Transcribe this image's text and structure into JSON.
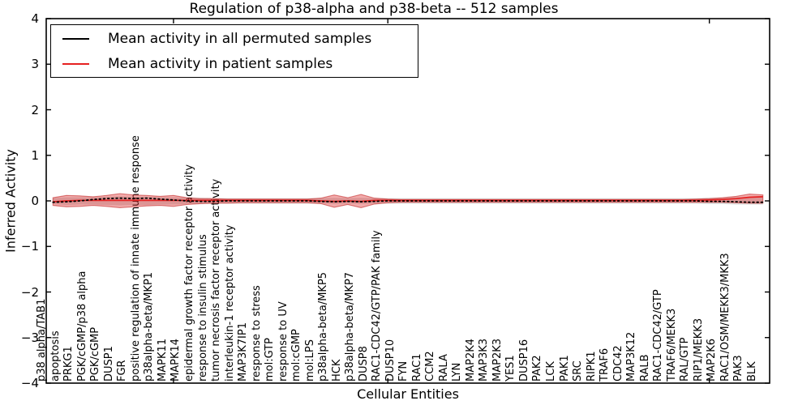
{
  "figure": {
    "title": "Regulation of p38-alpha and p38-beta -- 512 samples",
    "xlabel": "Cellular Entities",
    "ylabel": "Inferred Activity"
  },
  "legend": {
    "items": [
      {
        "label": "Mean activity in all permuted samples",
        "color": "#000000"
      },
      {
        "label": "Mean activity in patient samples",
        "color": "#e62020"
      }
    ]
  },
  "chart_data": {
    "type": "line",
    "title": "Regulation of p38-alpha and p38-beta -- 512 samples",
    "xlabel": "Cellular Entities",
    "ylabel": "Inferred Activity",
    "ylim": [
      -4,
      4
    ],
    "grid": false,
    "legend_position": "upper left",
    "y_ticks": [
      4,
      3,
      2,
      1,
      0,
      -1,
      -2,
      -3,
      -4
    ],
    "y_tick_labels": [
      "4",
      "3",
      "2",
      "1",
      "0",
      "−1",
      "−2",
      "−3",
      "−4"
    ],
    "x_major_tick_indices": [
      9,
      25,
      49
    ],
    "colors": {
      "permuted_line": "#000000",
      "patient_line": "#e62020",
      "patient_band_fill": "rgba(222,45,45,0.40)",
      "patient_band_edge": "rgba(190,25,25,0.55)",
      "permuted_band_fill": "rgba(0,0,0,0.14)"
    },
    "categories": [
      "p38 alpha/TAB1",
      "apoptosis",
      "PRKG1",
      "PGK/cGMP/p38 alpha",
      "PGK/cGMP",
      "DUSP1",
      "FGR",
      "positive regulation of innate immune response",
      "p38alpha-beta/MKP1",
      "MAPK11",
      "MAPK14",
      "epidermal growth factor receptor activity",
      "response to insulin stimulus",
      "tumor necrosis factor receptor activity",
      "interleukin-1 receptor activity",
      "MAP3K7IP1",
      "response to stress",
      "mol:GTP",
      "response to UV",
      "mol:cGMP",
      "mol:LPS",
      "p38alpha-beta/MKP5",
      "HCK",
      "p38alpha-beta/MKP7",
      "DUSP8",
      "RAC1-CDC42/GTP/PAK family",
      "DUSP10",
      "FYN",
      "RAC1",
      "CCM2",
      "RALA",
      "LYN",
      "MAP2K4",
      "MAP3K3",
      "MAP2K3",
      "YES1",
      "DUSP16",
      "PAK2",
      "LCK",
      "PAK1",
      "SRC",
      "RIPK1",
      "TRAF6",
      "CDC42",
      "MAP3K12",
      "RALB",
      "RAC1-CDC42/GTP",
      "TRAF6/MEKK3",
      "RAL/GTP",
      "RIP1/MEKK3",
      "MAP2K6",
      "RAC1/OSM/MEKK3/MKK3",
      "PAK3",
      "BLK"
    ],
    "series": [
      {
        "name": "Mean activity in all permuted samples",
        "linestyle": "dotted",
        "values": [
          -0.03,
          -0.02,
          0.0,
          0.03,
          0.05,
          0.06,
          0.05,
          0.06,
          0.04,
          0.02,
          0.0,
          -0.01,
          -0.01,
          0.0,
          0.0,
          0.0,
          0.0,
          0.0,
          0.0,
          0.0,
          -0.01,
          -0.02,
          -0.01,
          -0.02,
          -0.01,
          0.0,
          0.0,
          0.0,
          0.0,
          0.0,
          0.0,
          0.0,
          0.0,
          0.0,
          0.0,
          0.0,
          0.0,
          0.0,
          0.0,
          0.0,
          0.0,
          0.0,
          0.0,
          0.0,
          0.0,
          0.0,
          0.0,
          0.0,
          0.0,
          -0.01,
          -0.01,
          -0.02,
          -0.03,
          -0.03
        ]
      },
      {
        "name": "Mean activity in patient samples",
        "linestyle": "solid",
        "values": [
          -0.02,
          0.0,
          0.01,
          0.01,
          0.01,
          0.01,
          0.01,
          0.01,
          0.01,
          0.01,
          0.01,
          0.01,
          0.01,
          0.01,
          0.01,
          0.01,
          0.01,
          0.01,
          0.01,
          0.01,
          0.0,
          -0.01,
          0.0,
          -0.01,
          0.01,
          0.01,
          0.01,
          0.01,
          0.01,
          0.01,
          0.01,
          0.01,
          0.01,
          0.01,
          0.01,
          0.01,
          0.01,
          0.01,
          0.01,
          0.01,
          0.01,
          0.01,
          0.01,
          0.01,
          0.01,
          0.01,
          0.01,
          0.01,
          0.01,
          0.02,
          0.03,
          0.05,
          0.08,
          0.09
        ]
      }
    ],
    "bands": [
      {
        "name": "permuted-samples-range",
        "upper": [
          0.06,
          0.08,
          0.08,
          0.08,
          0.09,
          0.1,
          0.09,
          0.09,
          0.08,
          0.08,
          0.07,
          0.07,
          0.06,
          0.06,
          0.06,
          0.06,
          0.06,
          0.06,
          0.06,
          0.06,
          0.06,
          0.07,
          0.06,
          0.07,
          0.06,
          0.06,
          0.06,
          0.06,
          0.06,
          0.06,
          0.06,
          0.06,
          0.06,
          0.06,
          0.06,
          0.06,
          0.06,
          0.06,
          0.06,
          0.06,
          0.06,
          0.06,
          0.06,
          0.06,
          0.06,
          0.06,
          0.06,
          0.06,
          0.06,
          0.07,
          0.07,
          0.08,
          0.08,
          0.08
        ],
        "lower": [
          -0.07,
          -0.09,
          -0.08,
          -0.08,
          -0.09,
          -0.1,
          -0.09,
          -0.09,
          -0.08,
          -0.08,
          -0.07,
          -0.07,
          -0.06,
          -0.06,
          -0.06,
          -0.06,
          -0.06,
          -0.06,
          -0.06,
          -0.06,
          -0.06,
          -0.07,
          -0.06,
          -0.07,
          -0.06,
          -0.06,
          -0.06,
          -0.06,
          -0.06,
          -0.06,
          -0.06,
          -0.06,
          -0.06,
          -0.06,
          -0.06,
          -0.06,
          -0.06,
          -0.06,
          -0.06,
          -0.06,
          -0.06,
          -0.06,
          -0.06,
          -0.06,
          -0.06,
          -0.06,
          -0.06,
          -0.06,
          -0.06,
          -0.07,
          -0.07,
          -0.08,
          -0.08,
          -0.08
        ]
      },
      {
        "name": "patient-samples-range",
        "upper": [
          0.07,
          0.12,
          0.11,
          0.09,
          0.12,
          0.16,
          0.13,
          0.12,
          0.1,
          0.12,
          0.07,
          0.05,
          0.05,
          0.04,
          0.04,
          0.04,
          0.04,
          0.04,
          0.04,
          0.04,
          0.06,
          0.13,
          0.07,
          0.14,
          0.06,
          0.04,
          0.03,
          0.03,
          0.03,
          0.03,
          0.03,
          0.03,
          0.03,
          0.03,
          0.03,
          0.03,
          0.03,
          0.03,
          0.03,
          0.03,
          0.03,
          0.03,
          0.03,
          0.03,
          0.03,
          0.03,
          0.03,
          0.03,
          0.04,
          0.05,
          0.07,
          0.1,
          0.15,
          0.13
        ],
        "lower": [
          -0.1,
          -0.13,
          -0.12,
          -0.1,
          -0.12,
          -0.15,
          -0.13,
          -0.11,
          -0.1,
          -0.12,
          -0.08,
          -0.06,
          -0.05,
          -0.05,
          -0.04,
          -0.04,
          -0.04,
          -0.04,
          -0.04,
          -0.04,
          -0.06,
          -0.14,
          -0.08,
          -0.15,
          -0.07,
          -0.04,
          -0.03,
          -0.03,
          -0.03,
          -0.03,
          -0.03,
          -0.03,
          -0.03,
          -0.03,
          -0.03,
          -0.03,
          -0.03,
          -0.03,
          -0.03,
          -0.03,
          -0.03,
          -0.03,
          -0.03,
          -0.03,
          -0.03,
          -0.03,
          -0.03,
          -0.03,
          -0.03,
          -0.03,
          -0.03,
          -0.04,
          -0.05,
          -0.05
        ]
      }
    ]
  }
}
